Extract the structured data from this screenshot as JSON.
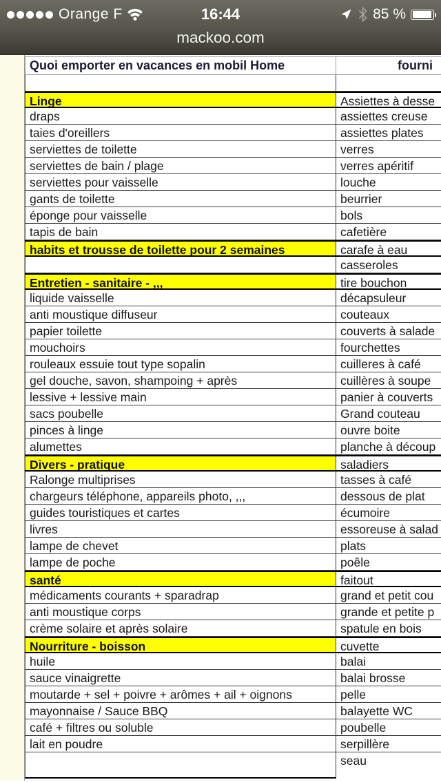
{
  "status_bar": {
    "carrier": "Orange F",
    "time": "16:44",
    "battery_percent": "85 %",
    "signal_dots": 5
  },
  "nav": {
    "title": "mackoo.com"
  },
  "colors": {
    "topbar": "#55554b",
    "highlight": "#ffff00",
    "gutter": "#fbfbe8",
    "grid": "#3d3d3d"
  },
  "table": {
    "header": {
      "left": "Quoi emporter en vacances en mobil Home",
      "right": "fourni"
    },
    "rows": [
      {
        "left": "",
        "right": "",
        "section": false
      },
      {
        "left": "Linge",
        "right": "Assiettes à desse",
        "section": true
      },
      {
        "left": "draps",
        "right": "assiettes creuse",
        "section": false
      },
      {
        "left": "taies d'oreillers",
        "right": "assiettes plates",
        "section": false
      },
      {
        "left": "serviettes de toilette",
        "right": "verres",
        "section": false
      },
      {
        "left": "serviettes de bain / plage",
        "right": "verres apéritif",
        "section": false
      },
      {
        "left": "serviettes pour vaisselle",
        "right": "louche",
        "section": false
      },
      {
        "left": "gants de toilette",
        "right": "beurrier",
        "section": false
      },
      {
        "left": "éponge pour vaisselle",
        "right": "bols",
        "section": false
      },
      {
        "left": "tapis de bain",
        "right": "cafetière",
        "section": false
      },
      {
        "left": "habits et trousse de toilette  pour 2 semaines",
        "right": "carafe à eau",
        "section": true
      },
      {
        "left": "",
        "right": "casseroles",
        "section": false
      },
      {
        "left": "Entretien - sanitaire - ,,,",
        "right": "tire bouchon",
        "section": true
      },
      {
        "left": "liquide vaisselle",
        "right": "décapsuleur",
        "section": false
      },
      {
        "left": "anti moustique diffuseur",
        "right": "couteaux",
        "section": false
      },
      {
        "left": "papier toilette",
        "right": "couverts à salade",
        "section": false
      },
      {
        "left": "mouchoirs",
        "right": "fourchettes",
        "section": false
      },
      {
        "left": "rouleaux essuie tout type sopalin",
        "right": "cuilleres à café",
        "section": false
      },
      {
        "left": "gel douche, savon, shampoing + après",
        "right": "cuillères à soupe",
        "section": false
      },
      {
        "left": "lessive + lessive main",
        "right": "panier à couverts",
        "section": false
      },
      {
        "left": "sacs poubelle",
        "right": "Grand couteau",
        "section": false
      },
      {
        "left": "pinces à linge",
        "right": "ouvre boite",
        "section": false
      },
      {
        "left": "alumettes",
        "right": "planche à découp",
        "section": false
      },
      {
        "left": "Divers - pratique",
        "right": "saladiers",
        "section": true
      },
      {
        "left": "Ralonge multiprises",
        "right": "tasses à café",
        "section": false
      },
      {
        "left": "chargeurs téléphone, appareils photo, ,,,",
        "right": "dessous de plat",
        "section": false
      },
      {
        "left": "guides touristiques et cartes",
        "right": "écumoire",
        "section": false
      },
      {
        "left": "livres",
        "right": "essoreuse à salad",
        "section": false
      },
      {
        "left": "lampe de chevet",
        "right": "plats",
        "section": false
      },
      {
        "left": "lampe de poche",
        "right": "poêle",
        "section": false
      },
      {
        "left": "santé",
        "right": "faitout",
        "section": true
      },
      {
        "left": "médicaments courants + sparadrap",
        "right": "grand et petit cou",
        "section": false
      },
      {
        "left": "anti moustique corps",
        "right": "grande et petite p",
        "section": false
      },
      {
        "left": "crème solaire et après solaire",
        "right": "spatule en bois",
        "section": false
      },
      {
        "left": "Nourriture - boisson",
        "right": "cuvette",
        "section": true
      },
      {
        "left": "huile",
        "right": "balai",
        "section": false
      },
      {
        "left": "sauce vinaigrette",
        "right": "balai brosse",
        "section": false
      },
      {
        "left": "moutarde +  sel + poivre + arômes + ail + oignons",
        "right": "pelle",
        "section": false
      },
      {
        "left": "mayonnaise / Sauce BBQ",
        "right": "balayette WC",
        "section": false
      },
      {
        "left": "café + filtres ou soluble",
        "right": "poubelle",
        "section": false
      },
      {
        "left": "lait en poudre",
        "right": "serpillère",
        "section": false
      },
      {
        "left": "",
        "right": "seau",
        "section": false
      }
    ]
  }
}
